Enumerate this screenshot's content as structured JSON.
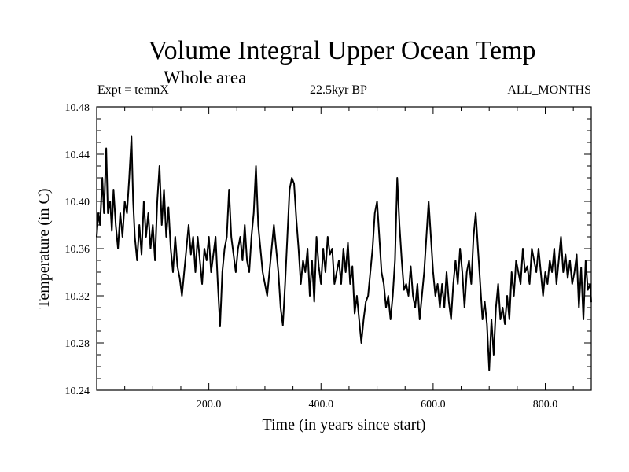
{
  "chart_data": {
    "type": "line",
    "title": "Volume Integral Upper Ocean Temp",
    "subtitle": "Whole area",
    "experiment": "Expt = temnX",
    "period": "22.5kyr BP",
    "months": "ALL_MONTHS",
    "xlabel": "Time (in years since start)",
    "ylabel": "Temperature (in C)",
    "xlim": [
      0,
      882
    ],
    "ylim": [
      10.24,
      10.48
    ],
    "xticks": [
      {
        "value": 200,
        "label": "200.0"
      },
      {
        "value": 400,
        "label": "400.0"
      },
      {
        "value": 600,
        "label": "600.0"
      },
      {
        "value": 800,
        "label": "800.0"
      }
    ],
    "yticks": [
      {
        "value": 10.24,
        "label": "10.24"
      },
      {
        "value": 10.28,
        "label": "10.28"
      },
      {
        "value": 10.32,
        "label": "10.32"
      },
      {
        "value": 10.36,
        "label": "10.36"
      },
      {
        "value": 10.4,
        "label": "10.40"
      },
      {
        "value": 10.44,
        "label": "10.44"
      },
      {
        "value": 10.48,
        "label": "10.48"
      }
    ],
    "series": [
      {
        "name": "Upper Ocean Temp",
        "color": "#000000",
        "points": [
          [
            0,
            10.37
          ],
          [
            3,
            10.39
          ],
          [
            6,
            10.38
          ],
          [
            10,
            10.42
          ],
          [
            13,
            10.39
          ],
          [
            17,
            10.445
          ],
          [
            20,
            10.39
          ],
          [
            24,
            10.4
          ],
          [
            27,
            10.375
          ],
          [
            30,
            10.41
          ],
          [
            34,
            10.38
          ],
          [
            38,
            10.36
          ],
          [
            42,
            10.39
          ],
          [
            46,
            10.37
          ],
          [
            50,
            10.4
          ],
          [
            54,
            10.39
          ],
          [
            58,
            10.42
          ],
          [
            62,
            10.455
          ],
          [
            65,
            10.4
          ],
          [
            68,
            10.37
          ],
          [
            72,
            10.35
          ],
          [
            76,
            10.38
          ],
          [
            80,
            10.355
          ],
          [
            84,
            10.4
          ],
          [
            88,
            10.37
          ],
          [
            92,
            10.39
          ],
          [
            96,
            10.36
          ],
          [
            100,
            10.38
          ],
          [
            104,
            10.35
          ],
          [
            108,
            10.4
          ],
          [
            112,
            10.43
          ],
          [
            116,
            10.38
          ],
          [
            120,
            10.41
          ],
          [
            124,
            10.37
          ],
          [
            128,
            10.395
          ],
          [
            132,
            10.36
          ],
          [
            136,
            10.34
          ],
          [
            140,
            10.37
          ],
          [
            144,
            10.345
          ],
          [
            148,
            10.335
          ],
          [
            152,
            10.32
          ],
          [
            156,
            10.34
          ],
          [
            160,
            10.36
          ],
          [
            164,
            10.38
          ],
          [
            168,
            10.355
          ],
          [
            172,
            10.37
          ],
          [
            176,
            10.34
          ],
          [
            180,
            10.37
          ],
          [
            184,
            10.35
          ],
          [
            188,
            10.33
          ],
          [
            192,
            10.36
          ],
          [
            196,
            10.35
          ],
          [
            200,
            10.37
          ],
          [
            204,
            10.34
          ],
          [
            208,
            10.355
          ],
          [
            212,
            10.37
          ],
          [
            216,
            10.33
          ],
          [
            220,
            10.294
          ],
          [
            224,
            10.34
          ],
          [
            228,
            10.36
          ],
          [
            232,
            10.37
          ],
          [
            236,
            10.41
          ],
          [
            240,
            10.37
          ],
          [
            244,
            10.355
          ],
          [
            248,
            10.34
          ],
          [
            252,
            10.36
          ],
          [
            256,
            10.37
          ],
          [
            260,
            10.35
          ],
          [
            264,
            10.38
          ],
          [
            268,
            10.35
          ],
          [
            272,
            10.34
          ],
          [
            276,
            10.37
          ],
          [
            280,
            10.39
          ],
          [
            284,
            10.43
          ],
          [
            288,
            10.38
          ],
          [
            292,
            10.36
          ],
          [
            296,
            10.34
          ],
          [
            300,
            10.33
          ],
          [
            304,
            10.32
          ],
          [
            308,
            10.34
          ],
          [
            312,
            10.36
          ],
          [
            316,
            10.38
          ],
          [
            320,
            10.36
          ],
          [
            324,
            10.34
          ],
          [
            328,
            10.31
          ],
          [
            332,
            10.295
          ],
          [
            336,
            10.33
          ],
          [
            340,
            10.37
          ],
          [
            344,
            10.41
          ],
          [
            348,
            10.42
          ],
          [
            352,
            10.415
          ],
          [
            356,
            10.385
          ],
          [
            360,
            10.36
          ],
          [
            364,
            10.33
          ],
          [
            368,
            10.35
          ],
          [
            372,
            10.34
          ],
          [
            376,
            10.36
          ],
          [
            380,
            10.32
          ],
          [
            384,
            10.35
          ],
          [
            388,
            10.315
          ],
          [
            392,
            10.37
          ],
          [
            396,
            10.345
          ],
          [
            400,
            10.33
          ],
          [
            404,
            10.36
          ],
          [
            408,
            10.34
          ],
          [
            412,
            10.37
          ],
          [
            416,
            10.355
          ],
          [
            420,
            10.36
          ],
          [
            424,
            10.33
          ],
          [
            428,
            10.34
          ],
          [
            432,
            10.35
          ],
          [
            436,
            10.33
          ],
          [
            440,
            10.36
          ],
          [
            444,
            10.34
          ],
          [
            448,
            10.365
          ],
          [
            452,
            10.33
          ],
          [
            456,
            10.345
          ],
          [
            460,
            10.305
          ],
          [
            464,
            10.32
          ],
          [
            468,
            10.3
          ],
          [
            472,
            10.28
          ],
          [
            476,
            10.3
          ],
          [
            480,
            10.315
          ],
          [
            484,
            10.32
          ],
          [
            488,
            10.34
          ],
          [
            492,
            10.36
          ],
          [
            496,
            10.39
          ],
          [
            500,
            10.4
          ],
          [
            504,
            10.37
          ],
          [
            508,
            10.34
          ],
          [
            512,
            10.33
          ],
          [
            516,
            10.31
          ],
          [
            520,
            10.32
          ],
          [
            524,
            10.3
          ],
          [
            528,
            10.32
          ],
          [
            532,
            10.35
          ],
          [
            536,
            10.42
          ],
          [
            540,
            10.38
          ],
          [
            544,
            10.35
          ],
          [
            548,
            10.325
          ],
          [
            552,
            10.33
          ],
          [
            556,
            10.32
          ],
          [
            560,
            10.345
          ],
          [
            564,
            10.32
          ],
          [
            568,
            10.31
          ],
          [
            572,
            10.33
          ],
          [
            576,
            10.3
          ],
          [
            580,
            10.32
          ],
          [
            584,
            10.34
          ],
          [
            588,
            10.37
          ],
          [
            592,
            10.4
          ],
          [
            596,
            10.37
          ],
          [
            600,
            10.34
          ],
          [
            604,
            10.32
          ],
          [
            608,
            10.33
          ],
          [
            612,
            10.31
          ],
          [
            616,
            10.33
          ],
          [
            620,
            10.31
          ],
          [
            624,
            10.34
          ],
          [
            628,
            10.315
          ],
          [
            632,
            10.3
          ],
          [
            636,
            10.33
          ],
          [
            640,
            10.35
          ],
          [
            644,
            10.33
          ],
          [
            648,
            10.36
          ],
          [
            652,
            10.34
          ],
          [
            656,
            10.31
          ],
          [
            660,
            10.34
          ],
          [
            664,
            10.35
          ],
          [
            668,
            10.33
          ],
          [
            672,
            10.37
          ],
          [
            676,
            10.39
          ],
          [
            680,
            10.36
          ],
          [
            684,
            10.33
          ],
          [
            688,
            10.3
          ],
          [
            692,
            10.315
          ],
          [
            696,
            10.296
          ],
          [
            700,
            10.257
          ],
          [
            704,
            10.3
          ],
          [
            708,
            10.27
          ],
          [
            712,
            10.31
          ],
          [
            716,
            10.33
          ],
          [
            720,
            10.3
          ],
          [
            724,
            10.31
          ],
          [
            728,
            10.296
          ],
          [
            732,
            10.32
          ],
          [
            736,
            10.3
          ],
          [
            740,
            10.34
          ],
          [
            744,
            10.32
          ],
          [
            748,
            10.35
          ],
          [
            752,
            10.34
          ],
          [
            756,
            10.33
          ],
          [
            760,
            10.36
          ],
          [
            764,
            10.34
          ],
          [
            768,
            10.345
          ],
          [
            772,
            10.33
          ],
          [
            776,
            10.36
          ],
          [
            780,
            10.35
          ],
          [
            784,
            10.34
          ],
          [
            788,
            10.36
          ],
          [
            792,
            10.34
          ],
          [
            796,
            10.32
          ],
          [
            800,
            10.34
          ],
          [
            804,
            10.33
          ],
          [
            808,
            10.35
          ],
          [
            812,
            10.34
          ],
          [
            816,
            10.36
          ],
          [
            820,
            10.33
          ],
          [
            824,
            10.35
          ],
          [
            828,
            10.37
          ],
          [
            832,
            10.34
          ],
          [
            836,
            10.355
          ],
          [
            840,
            10.335
          ],
          [
            844,
            10.35
          ],
          [
            848,
            10.33
          ],
          [
            852,
            10.34
          ],
          [
            856,
            10.355
          ],
          [
            860,
            10.31
          ],
          [
            864,
            10.344
          ],
          [
            868,
            10.3
          ],
          [
            872,
            10.35
          ],
          [
            876,
            10.325
          ],
          [
            880,
            10.33
          ],
          [
            882,
            10.315
          ]
        ]
      }
    ]
  }
}
